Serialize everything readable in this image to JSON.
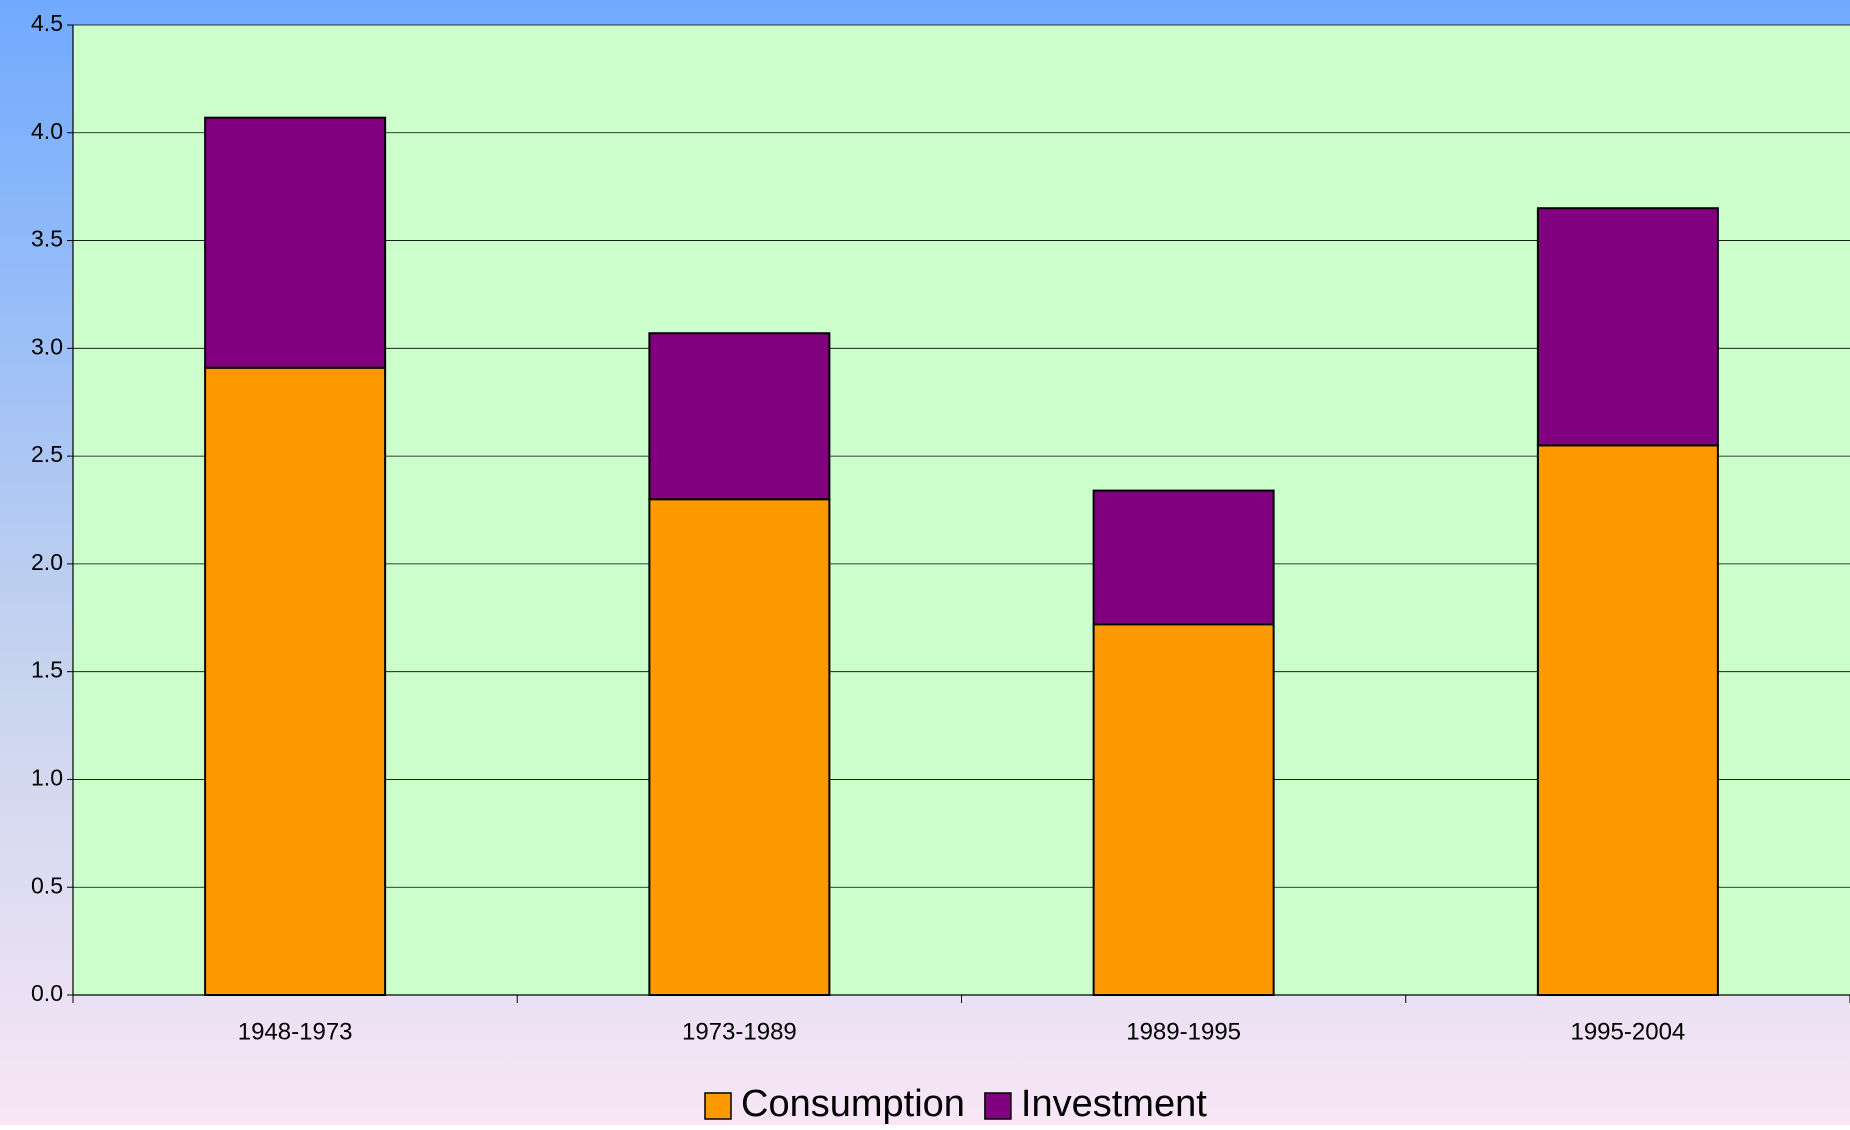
{
  "chart_data": {
    "type": "stacked_bar",
    "categories": [
      "1948-1973",
      "1973-1989",
      "1989-1995",
      "1995-2004"
    ],
    "series": [
      {
        "name": "Consumption",
        "color": "#ff9900",
        "values": [
          2.91,
          2.3,
          1.72,
          2.55
        ]
      },
      {
        "name": "Investment",
        "color": "#800080",
        "values": [
          1.16,
          0.77,
          0.62,
          1.1
        ]
      }
    ],
    "ylim": [
      0,
      4.5
    ],
    "yticks": [
      {
        "value": 0,
        "label": "0.0"
      },
      0.5,
      {
        "value": 1,
        "label": "1.0"
      },
      1.5,
      {
        "value": 2,
        "label": "2.0"
      },
      2.5,
      {
        "value": 3,
        "label": "3.0"
      },
      3.5,
      {
        "value": 4,
        "label": "4.0"
      },
      4.5
    ],
    "grid": true,
    "legend": "bottom"
  }
}
